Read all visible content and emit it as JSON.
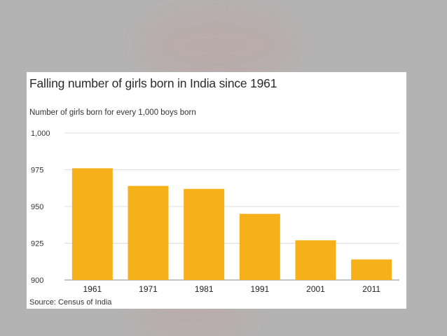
{
  "chart_data": {
    "type": "bar",
    "title": "Falling number of girls born in India since 1961",
    "subtitle": "Number of girls born for every 1,000 boys born",
    "source": "Source: Census of India",
    "categories": [
      "1961",
      "1971",
      "1981",
      "1991",
      "2001",
      "2011"
    ],
    "values": [
      976,
      964,
      962,
      945,
      927,
      914
    ],
    "ylim": [
      900,
      1000
    ],
    "yticks": [
      1000,
      975,
      950,
      925,
      900
    ],
    "ytick_labels": [
      "1,000",
      "975",
      "950",
      "925",
      "900"
    ],
    "xlabel": "",
    "ylabel": "",
    "grid": true,
    "bar_color": "#f6b01a",
    "grid_color": "#dddddd"
  }
}
